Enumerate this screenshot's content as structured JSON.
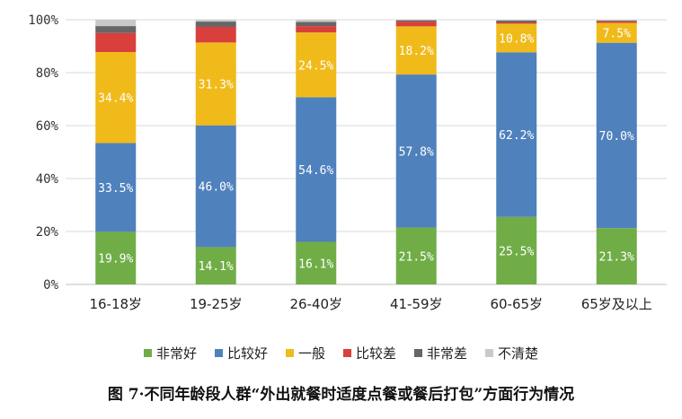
{
  "chart_data": {
    "type": "bar",
    "stacked": true,
    "categories": [
      "16-18岁",
      "19-25岁",
      "26-40岁",
      "41-59岁",
      "60-65岁",
      "65岁及以上"
    ],
    "series": [
      {
        "name": "非常好",
        "color": "#70ad47",
        "values": [
          19.9,
          14.1,
          16.1,
          21.5,
          25.5,
          21.3
        ],
        "labels": [
          "19.9%",
          "14.1%",
          "16.1%",
          "21.5%",
          "25.5%",
          "21.3%"
        ]
      },
      {
        "name": "比较好",
        "color": "#4f81bd",
        "values": [
          33.5,
          46.0,
          54.6,
          57.8,
          62.2,
          70.0
        ],
        "labels": [
          "33.5%",
          "46.0%",
          "54.6%",
          "57.8%",
          "62.2%",
          "70.0%"
        ]
      },
      {
        "name": "一般",
        "color": "#f0bb1a",
        "values": [
          34.4,
          31.3,
          24.5,
          18.2,
          10.8,
          7.5
        ],
        "labels": [
          "34.4%",
          "31.3%",
          "24.5%",
          "18.2%",
          "10.8%",
          "7.5%"
        ]
      },
      {
        "name": "比较差",
        "color": "#d9403b",
        "values": [
          7.2,
          5.9,
          2.4,
          1.8,
          0.5,
          0.6
        ],
        "labels": [
          "",
          "",
          "",
          "",
          "",
          ""
        ]
      },
      {
        "name": "非常差",
        "color": "#666666",
        "values": [
          2.6,
          2.0,
          1.6,
          0.5,
          0.7,
          0.3
        ],
        "labels": [
          "",
          "",
          "",
          "",
          "",
          ""
        ]
      },
      {
        "name": "不清楚",
        "color": "#c9c9c9",
        "values": [
          2.4,
          0.7,
          0.8,
          0.2,
          0.3,
          0.3
        ],
        "labels": [
          "",
          "",
          "",
          "",
          "",
          ""
        ]
      }
    ],
    "ylim": [
      0,
      100
    ],
    "yticks": [
      "0%",
      "20%",
      "40%",
      "60%",
      "80%",
      "100%"
    ],
    "grid": true,
    "legend_position": "bottom"
  },
  "caption": "图 7·不同年龄段人群“外出就餐时适度点餐或餐后打包”方面行为情况"
}
